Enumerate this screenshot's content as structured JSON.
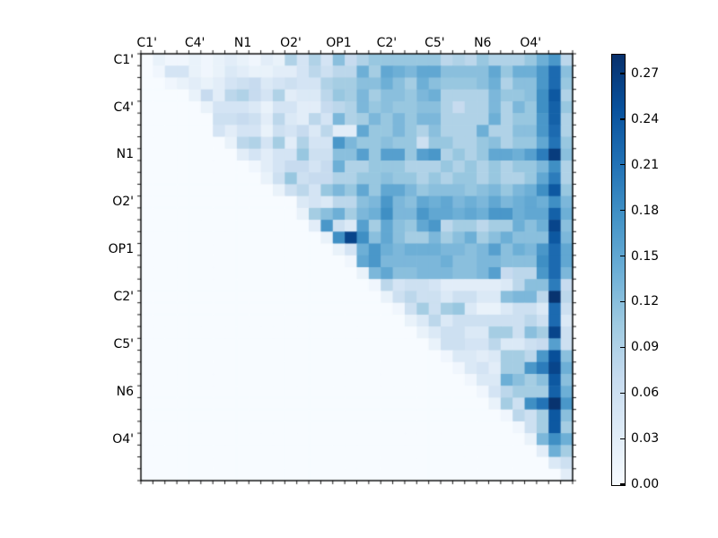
{
  "chart_data": {
    "type": "heatmap",
    "title": "",
    "triangle": "upper",
    "matrix_size": 36,
    "cells_per_label": 4,
    "axis_tick_labels": [
      "C1'",
      "C4'",
      "N1",
      "O2'",
      "OP1",
      "C2'",
      "C5'",
      "N6",
      "O4'"
    ],
    "xlabel": "",
    "ylabel": "",
    "vmin": 0.0,
    "vmax": 0.283,
    "colormap": {
      "name": "Blues",
      "anchors": [
        "#f7fbff",
        "#deebf7",
        "#c6dbef",
        "#9ecae1",
        "#6baed6",
        "#4292c6",
        "#2171b5",
        "#08519c",
        "#08306b"
      ]
    },
    "lower_triangle_value": 0.0,
    "colorbar": {
      "ticks": [
        0.27,
        0.24,
        0.21,
        0.18,
        0.15,
        0.12,
        0.09,
        0.06,
        0.03,
        0.0
      ],
      "tick_labels": [
        "0.27",
        "0.24",
        "0.21",
        "0.18",
        "0.15",
        "0.12",
        "0.09",
        "0.06",
        "0.03",
        "0.00"
      ],
      "position": "right"
    },
    "matrix_upper_triangle_rows": [
      [
        0.0,
        0.02,
        0.01,
        0.01,
        0.02,
        0.01,
        0.02,
        0.03,
        0.02,
        0.01,
        0.03,
        0.02,
        0.09,
        0.05,
        0.09,
        0.05,
        0.12,
        0.07,
        0.09,
        0.11,
        0.11,
        0.11,
        0.11,
        0.11,
        0.11,
        0.08,
        0.09,
        0.08,
        0.11,
        0.09,
        0.09,
        0.09,
        0.11,
        0.14,
        0.17,
        0.08
      ],
      [
        0.01,
        0.05,
        0.05,
        0.02,
        0.01,
        0.02,
        0.04,
        0.03,
        0.02,
        0.02,
        0.03,
        0.03,
        0.05,
        0.08,
        0.06,
        0.08,
        0.08,
        0.14,
        0.1,
        0.15,
        0.14,
        0.13,
        0.15,
        0.15,
        0.12,
        0.12,
        0.12,
        0.12,
        0.15,
        0.11,
        0.14,
        0.14,
        0.17,
        0.22,
        0.12
      ],
      [
        0.01,
        0.02,
        0.03,
        0.02,
        0.03,
        0.05,
        0.06,
        0.07,
        0.04,
        0.05,
        0.06,
        0.05,
        0.05,
        0.09,
        0.1,
        0.1,
        0.12,
        0.12,
        0.14,
        0.12,
        0.1,
        0.14,
        0.12,
        0.11,
        0.11,
        0.11,
        0.12,
        0.14,
        0.09,
        0.12,
        0.12,
        0.17,
        0.22,
        0.11
      ],
      [
        0.0,
        0.02,
        0.07,
        0.03,
        0.08,
        0.09,
        0.07,
        0.05,
        0.09,
        0.03,
        0.04,
        0.04,
        0.08,
        0.11,
        0.1,
        0.13,
        0.1,
        0.12,
        0.12,
        0.11,
        0.13,
        0.14,
        0.09,
        0.09,
        0.09,
        0.09,
        0.13,
        0.11,
        0.11,
        0.12,
        0.18,
        0.24,
        0.09
      ],
      [
        0.0,
        0.02,
        0.05,
        0.05,
        0.05,
        0.04,
        0.02,
        0.05,
        0.05,
        0.03,
        0.03,
        0.07,
        0.08,
        0.09,
        0.13,
        0.11,
        0.12,
        0.11,
        0.11,
        0.12,
        0.12,
        0.09,
        0.07,
        0.09,
        0.09,
        0.13,
        0.09,
        0.13,
        0.11,
        0.18,
        0.23,
        0.11
      ],
      [
        0.0,
        0.06,
        0.06,
        0.07,
        0.06,
        0.03,
        0.08,
        0.04,
        0.03,
        0.08,
        0.05,
        0.13,
        0.09,
        0.1,
        0.13,
        0.11,
        0.13,
        0.11,
        0.13,
        0.13,
        0.09,
        0.09,
        0.09,
        0.09,
        0.14,
        0.09,
        0.11,
        0.11,
        0.17,
        0.23,
        0.09
      ],
      [
        0.05,
        0.03,
        0.05,
        0.05,
        0.02,
        0.06,
        0.05,
        0.07,
        0.04,
        0.08,
        0.03,
        0.03,
        0.15,
        0.11,
        0.11,
        0.13,
        0.11,
        0.09,
        0.12,
        0.09,
        0.09,
        0.09,
        0.14,
        0.09,
        0.09,
        0.12,
        0.12,
        0.17,
        0.22,
        0.09
      ],
      [
        0.02,
        0.08,
        0.09,
        0.05,
        0.1,
        0.03,
        0.09,
        0.05,
        0.05,
        0.17,
        0.13,
        0.11,
        0.11,
        0.12,
        0.11,
        0.11,
        0.06,
        0.11,
        0.11,
        0.09,
        0.09,
        0.11,
        0.12,
        0.09,
        0.11,
        0.11,
        0.15,
        0.21,
        0.11
      ],
      [
        0.03,
        0.05,
        0.03,
        0.05,
        0.05,
        0.11,
        0.06,
        0.06,
        0.12,
        0.12,
        0.16,
        0.11,
        0.16,
        0.16,
        0.11,
        0.16,
        0.17,
        0.09,
        0.11,
        0.09,
        0.11,
        0.15,
        0.15,
        0.14,
        0.16,
        0.2,
        0.27,
        0.12
      ],
      [
        0.01,
        0.03,
        0.05,
        0.07,
        0.07,
        0.05,
        0.07,
        0.14,
        0.09,
        0.09,
        0.11,
        0.11,
        0.11,
        0.09,
        0.09,
        0.09,
        0.11,
        0.09,
        0.11,
        0.09,
        0.11,
        0.09,
        0.11,
        0.11,
        0.13,
        0.18,
        0.09
      ],
      [
        0.02,
        0.06,
        0.11,
        0.06,
        0.07,
        0.07,
        0.09,
        0.09,
        0.11,
        0.11,
        0.12,
        0.11,
        0.11,
        0.09,
        0.11,
        0.09,
        0.11,
        0.11,
        0.09,
        0.11,
        0.09,
        0.09,
        0.11,
        0.15,
        0.2,
        0.09
      ],
      [
        0.02,
        0.06,
        0.08,
        0.05,
        0.11,
        0.13,
        0.11,
        0.15,
        0.11,
        0.15,
        0.15,
        0.13,
        0.11,
        0.12,
        0.12,
        0.12,
        0.11,
        0.12,
        0.13,
        0.11,
        0.13,
        0.14,
        0.18,
        0.24,
        0.11
      ],
      [
        0.0,
        0.04,
        0.05,
        0.04,
        0.08,
        0.08,
        0.12,
        0.13,
        0.17,
        0.13,
        0.12,
        0.15,
        0.14,
        0.15,
        0.13,
        0.14,
        0.13,
        0.15,
        0.13,
        0.14,
        0.15,
        0.14,
        0.18,
        0.13
      ],
      [
        0.02,
        0.1,
        0.12,
        0.14,
        0.1,
        0.13,
        0.14,
        0.18,
        0.13,
        0.13,
        0.17,
        0.15,
        0.15,
        0.14,
        0.15,
        0.14,
        0.17,
        0.17,
        0.14,
        0.15,
        0.15,
        0.23,
        0.14
      ],
      [
        0.03,
        0.17,
        0.06,
        0.04,
        0.16,
        0.1,
        0.15,
        0.12,
        0.11,
        0.15,
        0.17,
        0.08,
        0.1,
        0.1,
        0.08,
        0.1,
        0.1,
        0.14,
        0.12,
        0.14,
        0.26,
        0.12
      ],
      [
        0.02,
        0.18,
        0.26,
        0.18,
        0.12,
        0.15,
        0.12,
        0.1,
        0.1,
        0.13,
        0.1,
        0.12,
        0.14,
        0.1,
        0.12,
        0.14,
        0.12,
        0.12,
        0.12,
        0.24,
        0.13
      ],
      [
        0.02,
        0.05,
        0.14,
        0.17,
        0.14,
        0.13,
        0.14,
        0.14,
        0.14,
        0.13,
        0.13,
        0.12,
        0.13,
        0.16,
        0.12,
        0.14,
        0.13,
        0.17,
        0.22,
        0.15
      ],
      [
        0.01,
        0.15,
        0.17,
        0.13,
        0.13,
        0.13,
        0.13,
        0.13,
        0.14,
        0.12,
        0.12,
        0.13,
        0.13,
        0.12,
        0.12,
        0.12,
        0.18,
        0.22,
        0.15
      ],
      [
        0.02,
        0.13,
        0.15,
        0.12,
        0.12,
        0.13,
        0.13,
        0.13,
        0.12,
        0.12,
        0.13,
        0.16,
        0.07,
        0.08,
        0.08,
        0.17,
        0.22,
        0.13
      ],
      [
        0.01,
        0.08,
        0.05,
        0.06,
        0.06,
        0.05,
        0.03,
        0.03,
        0.03,
        0.03,
        0.03,
        0.04,
        0.08,
        0.12,
        0.12,
        0.2,
        0.07
      ],
      [
        0.02,
        0.06,
        0.08,
        0.06,
        0.06,
        0.04,
        0.06,
        0.06,
        0.04,
        0.04,
        0.12,
        0.13,
        0.13,
        0.08,
        0.28,
        0.08
      ],
      [
        0.01,
        0.06,
        0.1,
        0.06,
        0.1,
        0.11,
        0.04,
        0.02,
        0.02,
        0.04,
        0.06,
        0.06,
        0.04,
        0.22,
        0.06
      ],
      [
        0.02,
        0.04,
        0.08,
        0.04,
        0.06,
        0.06,
        0.06,
        0.06,
        0.06,
        0.06,
        0.08,
        0.06,
        0.22,
        0.04
      ],
      [
        0.02,
        0.04,
        0.06,
        0.06,
        0.04,
        0.04,
        0.1,
        0.1,
        0.06,
        0.12,
        0.1,
        0.26,
        0.06
      ],
      [
        0.02,
        0.06,
        0.06,
        0.05,
        0.05,
        0.08,
        0.04,
        0.04,
        0.06,
        0.07,
        0.16,
        0.06
      ],
      [
        0.01,
        0.04,
        0.04,
        0.03,
        0.04,
        0.1,
        0.1,
        0.08,
        0.17,
        0.25,
        0.12
      ],
      [
        0.01,
        0.04,
        0.05,
        0.03,
        0.1,
        0.1,
        0.17,
        0.2,
        0.26,
        0.14
      ],
      [
        0.01,
        0.04,
        0.04,
        0.14,
        0.12,
        0.1,
        0.12,
        0.24,
        0.12
      ],
      [
        0.01,
        0.05,
        0.08,
        0.1,
        0.1,
        0.1,
        0.23,
        0.14
      ],
      [
        0.02,
        0.1,
        0.06,
        0.18,
        0.21,
        0.28,
        0.17
      ],
      [
        0.01,
        0.08,
        0.06,
        0.1,
        0.24,
        0.12
      ],
      [
        0.01,
        0.06,
        0.1,
        0.24,
        0.1
      ],
      [
        0.02,
        0.13,
        0.18,
        0.14
      ],
      [
        0.03,
        0.14,
        0.1
      ],
      [
        0.04,
        0.06
      ],
      [
        0.03
      ]
    ]
  }
}
